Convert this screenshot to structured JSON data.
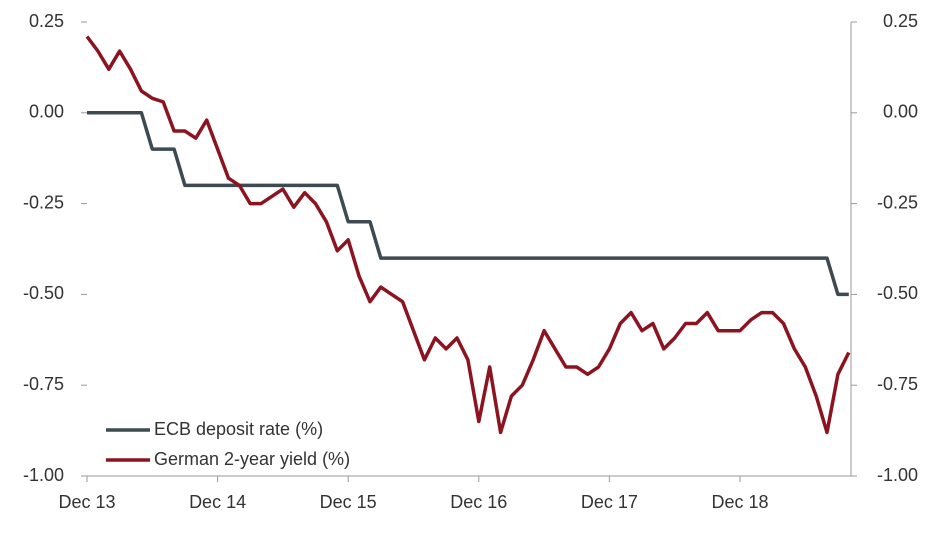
{
  "chart_data": {
    "type": "line",
    "x": [
      "2013-12",
      "2014-01",
      "2014-02",
      "2014-03",
      "2014-04",
      "2014-05",
      "2014-06",
      "2014-07",
      "2014-08",
      "2014-09",
      "2014-10",
      "2014-11",
      "2014-12",
      "2015-01",
      "2015-02",
      "2015-03",
      "2015-04",
      "2015-05",
      "2015-06",
      "2015-07",
      "2015-08",
      "2015-09",
      "2015-10",
      "2015-11",
      "2015-12",
      "2016-01",
      "2016-02",
      "2016-03",
      "2016-04",
      "2016-05",
      "2016-06",
      "2016-07",
      "2016-08",
      "2016-09",
      "2016-10",
      "2016-11",
      "2016-12",
      "2017-01",
      "2017-02",
      "2017-03",
      "2017-04",
      "2017-05",
      "2017-06",
      "2017-07",
      "2017-08",
      "2017-09",
      "2017-10",
      "2017-11",
      "2017-12",
      "2018-01",
      "2018-02",
      "2018-03",
      "2018-04",
      "2018-05",
      "2018-06",
      "2018-07",
      "2018-08",
      "2018-09",
      "2018-10",
      "2018-11",
      "2018-12",
      "2019-01",
      "2019-02",
      "2019-03",
      "2019-04",
      "2019-05",
      "2019-06",
      "2019-07",
      "2019-08",
      "2019-09",
      "2019-10"
    ],
    "series": [
      {
        "name": "ECB deposit rate (%)",
        "color": "#3d4a52",
        "values": [
          0,
          0,
          0,
          0,
          0,
          0,
          -0.1,
          -0.1,
          -0.1,
          -0.2,
          -0.2,
          -0.2,
          -0.2,
          -0.2,
          -0.2,
          -0.2,
          -0.2,
          -0.2,
          -0.2,
          -0.2,
          -0.2,
          -0.2,
          -0.2,
          -0.2,
          -0.3,
          -0.3,
          -0.3,
          -0.4,
          -0.4,
          -0.4,
          -0.4,
          -0.4,
          -0.4,
          -0.4,
          -0.4,
          -0.4,
          -0.4,
          -0.4,
          -0.4,
          -0.4,
          -0.4,
          -0.4,
          -0.4,
          -0.4,
          -0.4,
          -0.4,
          -0.4,
          -0.4,
          -0.4,
          -0.4,
          -0.4,
          -0.4,
          -0.4,
          -0.4,
          -0.4,
          -0.4,
          -0.4,
          -0.4,
          -0.4,
          -0.4,
          -0.4,
          -0.4,
          -0.4,
          -0.4,
          -0.4,
          -0.4,
          -0.4,
          -0.4,
          -0.4,
          -0.5,
          -0.5
        ]
      },
      {
        "name": "German 2-year yield (%)",
        "color": "#8b1420",
        "axis": "y2",
        "values": [
          0.21,
          0.17,
          0.12,
          0.17,
          0.12,
          0.06,
          0.04,
          0.03,
          -0.05,
          -0.05,
          -0.07,
          -0.02,
          -0.1,
          -0.18,
          -0.2,
          -0.25,
          -0.25,
          -0.23,
          -0.21,
          -0.26,
          -0.22,
          -0.25,
          -0.3,
          -0.38,
          -0.35,
          -0.45,
          -0.52,
          -0.48,
          -0.5,
          -0.52,
          -0.6,
          -0.68,
          -0.62,
          -0.65,
          -0.62,
          -0.68,
          -0.85,
          -0.7,
          -0.88,
          -0.78,
          -0.75,
          -0.68,
          -0.6,
          -0.65,
          -0.7,
          -0.7,
          -0.72,
          -0.7,
          -0.65,
          -0.58,
          -0.55,
          -0.6,
          -0.58,
          -0.65,
          -0.62,
          -0.58,
          -0.58,
          -0.55,
          -0.6,
          -0.6,
          -0.6,
          -0.57,
          -0.55,
          -0.55,
          -0.58,
          -0.65,
          -0.7,
          -0.78,
          -0.88,
          -0.72,
          -0.66
        ]
      }
    ],
    "xticks": [
      {
        "value": "2013-12",
        "label": "Dec 13"
      },
      {
        "value": "2014-12",
        "label": "Dec 14"
      },
      {
        "value": "2015-12",
        "label": "Dec 15"
      },
      {
        "value": "2016-12",
        "label": "Dec 16"
      },
      {
        "value": "2017-12",
        "label": "Dec 17"
      },
      {
        "value": "2018-12",
        "label": "Dec 18"
      }
    ],
    "ylim": [
      -1,
      0.25
    ],
    "yticks": [
      {
        "value": -1,
        "label": "-1.00"
      },
      -0.75,
      {
        "value": -0.5,
        "label": "-0.50"
      },
      -0.25,
      {
        "value": 0,
        "label": "0.00"
      },
      0.25
    ],
    "y2lim": [
      -1,
      0.25
    ],
    "y2ticks": [
      {
        "value": -1,
        "label": "-1.00"
      },
      -0.75,
      {
        "value": -0.5,
        "label": "-0.50"
      },
      -0.25,
      {
        "value": 0,
        "label": "0.00"
      },
      0.25
    ],
    "legend": "lower-left"
  }
}
